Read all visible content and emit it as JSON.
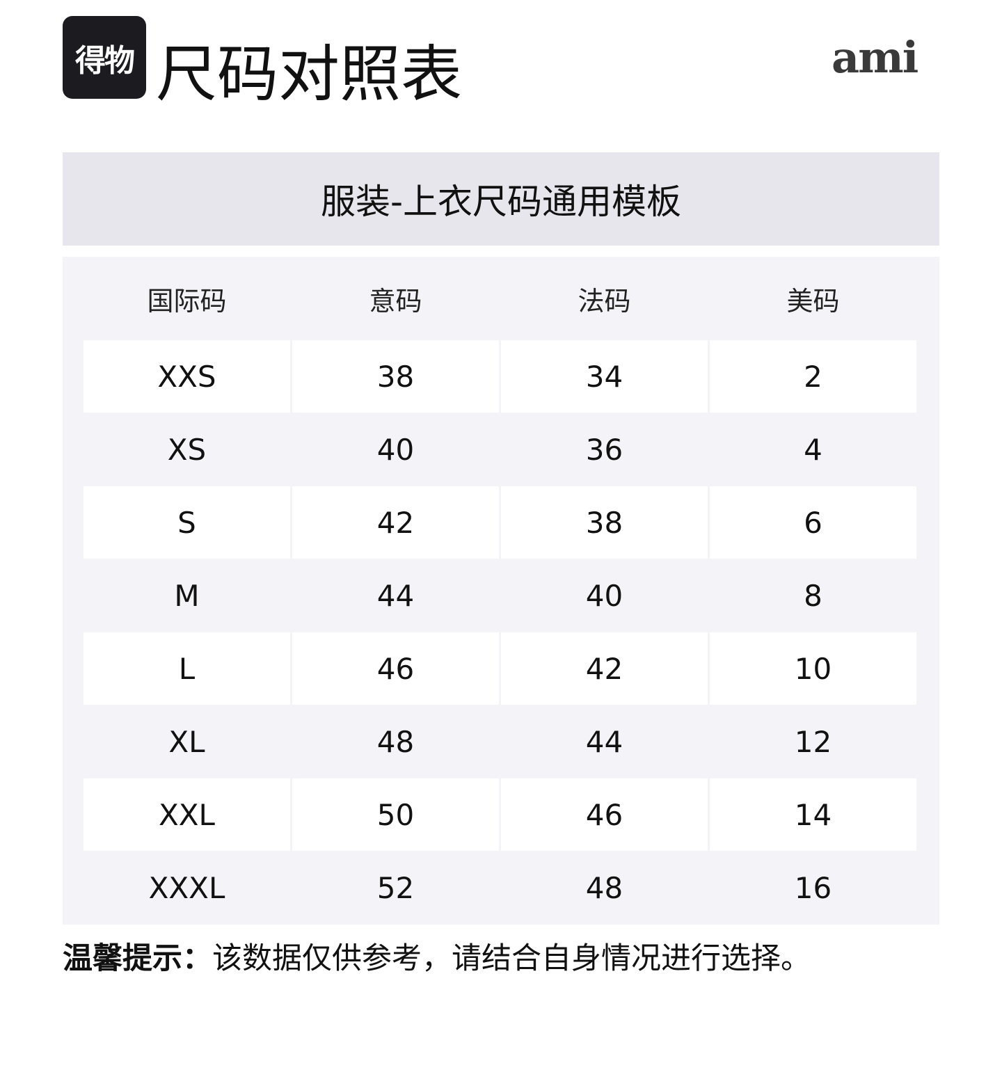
{
  "header": {
    "logo_text": "得物",
    "title": "尺码对照表",
    "brand": "ami"
  },
  "banner": "服装-上衣尺码通用模板",
  "table": {
    "columns": [
      "国际码",
      "意码",
      "法码",
      "美码"
    ],
    "rows": [
      [
        "XXS",
        "38",
        "34",
        "2"
      ],
      [
        "XS",
        "40",
        "36",
        "4"
      ],
      [
        "S",
        "42",
        "38",
        "6"
      ],
      [
        "M",
        "44",
        "40",
        "8"
      ],
      [
        "L",
        "46",
        "42",
        "10"
      ],
      [
        "XL",
        "48",
        "44",
        "12"
      ],
      [
        "XXL",
        "50",
        "46",
        "14"
      ],
      [
        "XXXL",
        "52",
        "48",
        "16"
      ]
    ]
  },
  "tip": {
    "label": "温馨提示：",
    "text": "该数据仅供参考，请结合自身情况进行选择。"
  }
}
